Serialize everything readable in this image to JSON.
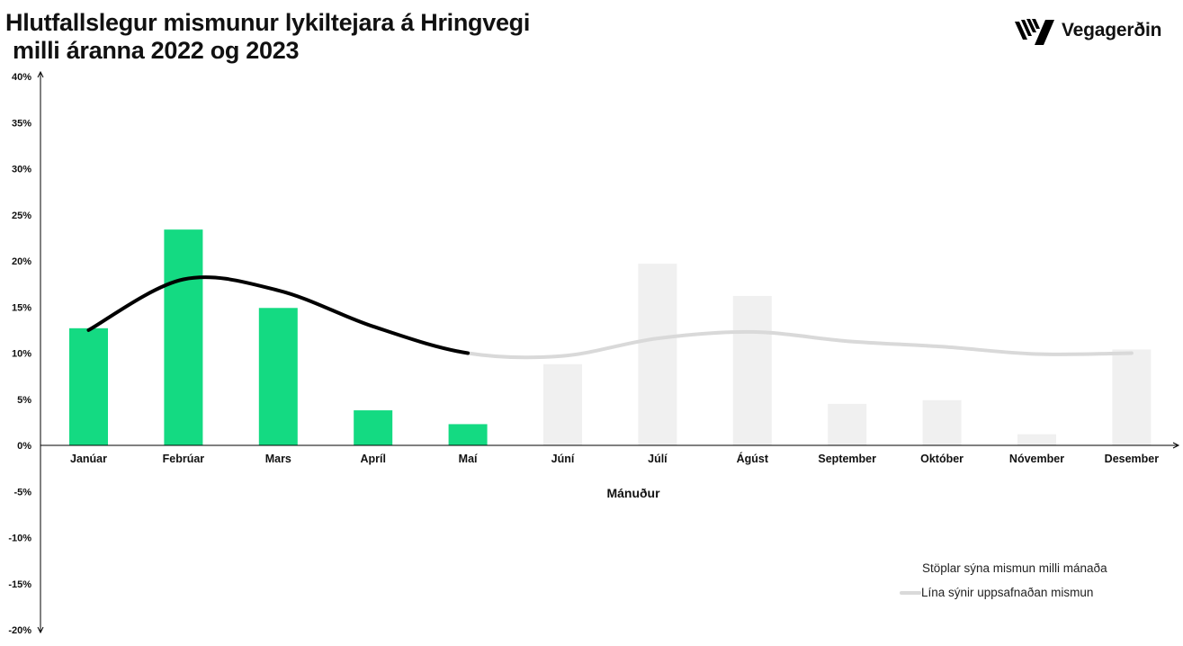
{
  "title_lines": [
    "Hlutfallslegur mismunur lykiltejara á Hringvegi",
    "milli áranna 2022 og 2023"
  ],
  "logo": {
    "text": "Vegagerðin",
    "icon": "vegagerdin-stripes-icon"
  },
  "colors": {
    "active_bar": "#14da82",
    "future_bar": "#f0f0f0",
    "active_line": "#000000",
    "future_line": "#d9d9d9"
  },
  "chart_data": {
    "type": "bar",
    "categories": [
      "Janúar",
      "Febrúar",
      "Mars",
      "Apríl",
      "Maí",
      "Júní",
      "Júlí",
      "Ágúst",
      "September",
      "Október",
      "Nóvember",
      "Desember"
    ],
    "series": [
      {
        "type": "bar",
        "values": [
          12.7,
          23.4,
          14.9,
          3.8,
          2.3,
          8.8,
          19.7,
          16.2,
          4.5,
          4.9,
          1.2,
          10.4
        ]
      },
      {
        "type": "line",
        "values": [
          12.5,
          18.0,
          16.8,
          12.9,
          10.0,
          9.7,
          11.6,
          12.3,
          11.3,
          10.7,
          9.9,
          10.0
        ]
      }
    ],
    "highlighted_months": 5,
    "xlabel": "Mánuður",
    "ylabel": "",
    "ylim": [
      -20,
      40
    ],
    "yticks": [
      "-20%",
      "-15%",
      "-10%",
      "-5%",
      "0%",
      "5%",
      "10%",
      "15%",
      "20%",
      "25%",
      "30%",
      "35%",
      "40%"
    ],
    "legend": {
      "position": "bottom-right",
      "items": [
        "Stöplar sýna mismun milli mánaða",
        "Lína sýnir uppsafnaðan mismun"
      ]
    }
  }
}
